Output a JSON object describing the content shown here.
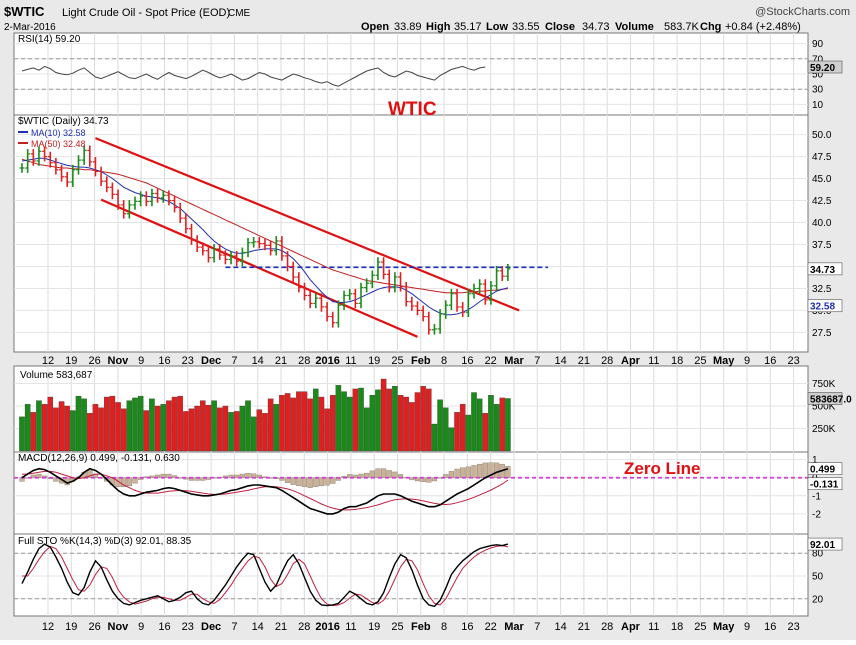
{
  "header": {
    "symbol": "$WTIC",
    "name": "Light Crude Oil - Spot Price (EOD)",
    "exchange": "CME",
    "date": "2-Mar-2016",
    "watermark": "@StockCharts.com",
    "open_label": "Open",
    "open": "33.89",
    "high_label": "High",
    "high": "35.17",
    "low_label": "Low",
    "low": "33.55",
    "close_label": "Close",
    "close": "34.73",
    "volume_label": "Volume",
    "volume": "583.7K",
    "chg_label": "Chg",
    "chg": "+0.84 (+2.48%)"
  },
  "annotations": {
    "title": "WTIC",
    "zero_line": "Zero Line"
  },
  "colors": {
    "up": "#1a8a1a",
    "down": "#e02020",
    "ma10": "#1f2fb0",
    "ma50": "#c02020",
    "channel": "#e01010",
    "resistance": "#1a2fc0",
    "zero_line": "#d040d0",
    "annotation": "#e01010",
    "panel_bg": "#ffffff",
    "frame_bg": "#e9e9e9"
  },
  "chart_data": [
    {
      "type": "line",
      "panel": "rsi",
      "legend": "RSI(14) 59.20",
      "ylim": [
        0,
        100
      ],
      "ticks": [
        "10",
        "30",
        "50",
        "70",
        "90"
      ],
      "tick_values": [
        10,
        30,
        50,
        70,
        90
      ],
      "reference_lines": [
        30,
        70
      ],
      "last_value_label": "59.20",
      "series": [
        {
          "values": [
            54,
            56,
            58,
            55,
            60,
            57,
            52,
            50,
            49,
            51,
            55,
            58,
            52,
            46,
            44,
            47,
            50,
            53,
            49,
            45,
            44,
            47,
            50,
            46,
            43,
            48,
            52,
            48,
            46,
            44,
            47,
            51,
            55,
            52,
            48,
            45,
            47,
            50,
            46,
            42,
            44,
            48,
            52,
            50,
            46,
            44,
            42,
            46,
            50,
            48,
            45,
            43,
            40,
            38,
            40,
            36,
            34,
            38,
            42,
            46,
            50,
            54,
            56,
            58,
            52,
            48,
            46,
            50,
            54,
            52,
            48,
            46,
            44,
            42,
            48,
            52,
            56,
            58,
            60,
            57,
            55,
            58,
            59.2
          ]
        }
      ]
    },
    {
      "type": "line",
      "panel": "price",
      "legend": "$WTIC (Daily) 34.73",
      "ma_labels": [
        "MA(10) 32.58",
        "MA(50) 32.48"
      ],
      "ylim": [
        25.5,
        52
      ],
      "ticks": [
        "27.5",
        "30.0",
        "32.5",
        "35.0",
        "37.5",
        "40.0",
        "42.5",
        "45.0",
        "47.5",
        "50.0"
      ],
      "tick_values": [
        27.5,
        30,
        32.5,
        35,
        37.5,
        40,
        42.5,
        45,
        47.5,
        50
      ],
      "last_close_label": "34.73",
      "ma10_label": "32.58",
      "resistance_level": 34.9,
      "x_tick_labels": [
        "12",
        "19",
        "26",
        "Nov",
        "9",
        "16",
        "23",
        "Dec",
        "7",
        "14",
        "21",
        "28",
        "2016",
        "11",
        "19",
        "25",
        "Feb",
        "8",
        "16",
        "22",
        "Mar",
        "7",
        "14",
        "21",
        "28",
        "Apr",
        "11",
        "18",
        "25",
        "May",
        "9",
        "16",
        "23"
      ],
      "bold_x_labels": [
        "Nov",
        "Dec",
        "2016",
        "Feb",
        "Mar",
        "Apr",
        "May"
      ],
      "close": [
        46.2,
        47.8,
        47.0,
        48.1,
        47.5,
        46.8,
        46.0,
        45.2,
        44.6,
        46.0,
        47.1,
        48.2,
        46.9,
        45.8,
        44.7,
        44.0,
        43.2,
        42.0,
        41.0,
        42.0,
        42.4,
        43.0,
        42.4,
        43.3,
        42.8,
        43.1,
        42.5,
        41.7,
        40.5,
        39.3,
        38.0,
        37.2,
        36.8,
        36.0,
        37.0,
        36.3,
        35.8,
        36.2,
        35.6,
        36.6,
        37.7,
        37.8,
        37.6,
        37.4,
        36.8,
        37.9,
        36.2,
        35.0,
        33.8,
        32.6,
        31.7,
        30.8,
        31.4,
        30.4,
        29.3,
        28.6,
        30.6,
        31.7,
        31.9,
        30.8,
        32.6,
        33.1,
        34.0,
        35.5,
        34.1,
        32.6,
        33.8,
        32.7,
        31.0,
        30.5,
        30.0,
        29.3,
        27.8,
        27.9,
        29.6,
        30.6,
        31.9,
        30.4,
        29.8,
        31.9,
        32.5,
        33.0,
        31.2,
        32.8,
        34.5,
        33.9,
        34.73
      ],
      "ma10": [
        47.0,
        47.1,
        47.2,
        47.3,
        47.3,
        47.1,
        46.9,
        46.7,
        46.5,
        46.4,
        46.3,
        46.3,
        46.2,
        46.0,
        45.8,
        45.4,
        45.0,
        44.5,
        44.0,
        43.7,
        43.4,
        43.2,
        43.0,
        42.9,
        42.8,
        42.6,
        42.4,
        42.0,
        41.6,
        41.0,
        40.4,
        39.8,
        39.2,
        38.5,
        37.9,
        37.4,
        37.0,
        36.7,
        36.5,
        36.5,
        36.6,
        36.8,
        36.9,
        37.0,
        37.0,
        37.0,
        36.8,
        36.4,
        35.9,
        35.2,
        34.4,
        33.5,
        32.8,
        32.1,
        31.5,
        31.0,
        30.9,
        30.9,
        31.0,
        31.2,
        31.5,
        31.8,
        32.1,
        32.4,
        32.6,
        32.7,
        32.7,
        32.6,
        32.3,
        31.9,
        31.4,
        30.9,
        30.4,
        30.0,
        29.7,
        29.5,
        29.5,
        29.6,
        29.8,
        30.1,
        30.5,
        31.0,
        31.4,
        31.8,
        32.2,
        32.4,
        32.58
      ],
      "ma50": [
        47.2,
        47.0,
        46.8,
        46.6,
        46.5,
        46.4,
        46.3,
        46.2,
        46.2,
        46.1,
        46.1,
        46.0,
        46.0,
        45.9,
        45.8,
        45.7,
        45.6,
        45.5,
        45.3,
        45.1,
        44.9,
        44.7,
        44.5,
        44.2,
        43.9,
        43.6,
        43.3,
        43.0,
        42.7,
        42.4,
        42.1,
        41.8,
        41.5,
        41.2,
        40.9,
        40.6,
        40.3,
        40.0,
        39.7,
        39.4,
        39.1,
        38.8,
        38.5,
        38.2,
        37.9,
        37.6,
        37.3,
        37.0,
        36.7,
        36.4,
        36.1,
        35.8,
        35.5,
        35.2,
        34.9,
        34.6,
        34.4,
        34.2,
        34.0,
        33.8,
        33.6,
        33.4,
        33.3,
        33.2,
        33.1,
        33.0,
        32.9,
        32.8,
        32.7,
        32.6,
        32.5,
        32.4,
        32.3,
        32.2,
        32.1,
        32.0,
        32.0,
        32.0,
        32.0,
        32.1,
        32.1,
        32.2,
        32.2,
        32.3,
        32.3,
        32.4,
        32.48
      ]
    },
    {
      "type": "bar",
      "panel": "volume",
      "legend": "Volume 583,687",
      "ylim": [
        0,
        900000
      ],
      "ticks": [
        "250K",
        "500K",
        "750K"
      ],
      "tick_values": [
        250000,
        500000,
        750000
      ],
      "last_value_label": "583687.0",
      "values": [
        380000,
        520000,
        430000,
        560000,
        520000,
        600000,
        480000,
        550000,
        500000,
        450000,
        610000,
        580000,
        420000,
        520000,
        480000,
        600000,
        610000,
        540000,
        470000,
        560000,
        590000,
        610000,
        450000,
        580000,
        500000,
        520000,
        560000,
        600000,
        610000,
        440000,
        470000,
        500000,
        560000,
        510000,
        560000,
        480000,
        500000,
        430000,
        440000,
        500000,
        560000,
        380000,
        460000,
        420000,
        580000,
        520000,
        620000,
        640000,
        590000,
        660000,
        660000,
        580000,
        690000,
        600000,
        470000,
        620000,
        730000,
        660000,
        600000,
        690000,
        700000,
        480000,
        620000,
        680000,
        800000,
        690000,
        720000,
        620000,
        600000,
        540000,
        650000,
        720000,
        690000,
        300000,
        570000,
        480000,
        260000,
        430000,
        520000,
        400000,
        650000,
        580000,
        420000,
        620000,
        520000,
        590000,
        583687
      ]
    },
    {
      "type": "line",
      "panel": "macd",
      "legend": "MACD(12,26,9) 0.499, -0.131, 0.630",
      "ylim": [
        -3,
        1.2
      ],
      "ticks": [
        "-2",
        "-1",
        "0",
        "1"
      ],
      "tick_values": [
        -2,
        -1,
        0,
        1
      ],
      "last_value_labels": [
        "0.499",
        "-0.131"
      ],
      "macd": [
        0.0,
        0.2,
        0.4,
        0.5,
        0.45,
        0.3,
        0.1,
        -0.1,
        -0.3,
        -0.2,
        0.0,
        0.3,
        0.5,
        0.4,
        0.2,
        -0.1,
        -0.4,
        -0.7,
        -0.9,
        -1.0,
        -1.0,
        -0.9,
        -0.8,
        -0.75,
        -0.7,
        -0.6,
        -0.55,
        -0.6,
        -0.7,
        -0.8,
        -0.9,
        -0.95,
        -1.0,
        -1.0,
        -0.95,
        -0.9,
        -0.8,
        -0.7,
        -0.65,
        -0.55,
        -0.45,
        -0.4,
        -0.4,
        -0.45,
        -0.5,
        -0.55,
        -0.7,
        -0.9,
        -1.1,
        -1.3,
        -1.5,
        -1.7,
        -1.8,
        -1.9,
        -2.0,
        -2.0,
        -1.9,
        -1.7,
        -1.6,
        -1.6,
        -1.5,
        -1.4,
        -1.2,
        -1.0,
        -0.9,
        -0.9,
        -0.9,
        -1.0,
        -1.15,
        -1.3,
        -1.4,
        -1.5,
        -1.6,
        -1.6,
        -1.5,
        -1.3,
        -1.1,
        -0.9,
        -0.75,
        -0.6,
        -0.4,
        -0.2,
        0.0,
        0.15,
        0.3,
        0.4,
        0.499
      ],
      "signal": [
        0.2,
        0.2,
        0.25,
        0.3,
        0.35,
        0.35,
        0.3,
        0.2,
        0.1,
        0.0,
        -0.05,
        0.0,
        0.1,
        0.2,
        0.2,
        0.1,
        0.0,
        -0.2,
        -0.4,
        -0.55,
        -0.7,
        -0.8,
        -0.85,
        -0.85,
        -0.85,
        -0.8,
        -0.75,
        -0.72,
        -0.7,
        -0.72,
        -0.75,
        -0.8,
        -0.85,
        -0.9,
        -0.92,
        -0.92,
        -0.9,
        -0.85,
        -0.8,
        -0.75,
        -0.7,
        -0.62,
        -0.55,
        -0.5,
        -0.5,
        -0.5,
        -0.55,
        -0.62,
        -0.72,
        -0.85,
        -1.0,
        -1.15,
        -1.3,
        -1.45,
        -1.58,
        -1.68,
        -1.75,
        -1.78,
        -1.78,
        -1.75,
        -1.7,
        -1.65,
        -1.58,
        -1.5,
        -1.4,
        -1.3,
        -1.22,
        -1.18,
        -1.16,
        -1.18,
        -1.22,
        -1.28,
        -1.35,
        -1.42,
        -1.47,
        -1.48,
        -1.45,
        -1.38,
        -1.3,
        -1.2,
        -1.08,
        -0.95,
        -0.82,
        -0.68,
        -0.52,
        -0.35,
        -0.131
      ]
    },
    {
      "type": "line",
      "panel": "stochastic",
      "legend": "Full STO %K(14,3) %D(3) 92.01, 88.35",
      "ylim": [
        0,
        100
      ],
      "ticks": [
        "20",
        "50",
        "80"
      ],
      "tick_values": [
        20,
        50,
        80
      ],
      "reference_lines": [
        20,
        80
      ],
      "last_value_label": "92.01",
      "k": [
        40,
        55,
        72,
        86,
        92,
        88,
        75,
        60,
        42,
        28,
        25,
        35,
        55,
        70,
        62,
        45,
        30,
        20,
        14,
        12,
        15,
        18,
        20,
        22,
        24,
        20,
        16,
        18,
        22,
        28,
        30,
        20,
        14,
        12,
        18,
        28,
        38,
        50,
        62,
        72,
        80,
        78,
        60,
        42,
        30,
        38,
        55,
        70,
        78,
        66,
        48,
        30,
        18,
        12,
        11,
        12,
        14,
        22,
        30,
        26,
        20,
        14,
        12,
        16,
        28,
        48,
        66,
        78,
        74,
        58,
        38,
        20,
        12,
        10,
        18,
        34,
        52,
        62,
        70,
        76,
        82,
        86,
        88,
        90,
        91,
        90,
        92.01
      ],
      "d": [
        50,
        50,
        60,
        72,
        82,
        89,
        86,
        75,
        60,
        45,
        32,
        30,
        38,
        52,
        62,
        60,
        48,
        32,
        22,
        16,
        13,
        15,
        17,
        20,
        22,
        22,
        20,
        18,
        18,
        22,
        26,
        26,
        20,
        16,
        14,
        19,
        28,
        38,
        50,
        60,
        70,
        76,
        74,
        62,
        46,
        36,
        40,
        52,
        66,
        72,
        66,
        50,
        34,
        20,
        13,
        11,
        12,
        15,
        21,
        26,
        25,
        20,
        15,
        13,
        18,
        30,
        46,
        62,
        72,
        70,
        58,
        40,
        24,
        14,
        12,
        20,
        34,
        48,
        60,
        68,
        75,
        80,
        84,
        87,
        89,
        90,
        88.35
      ]
    }
  ]
}
